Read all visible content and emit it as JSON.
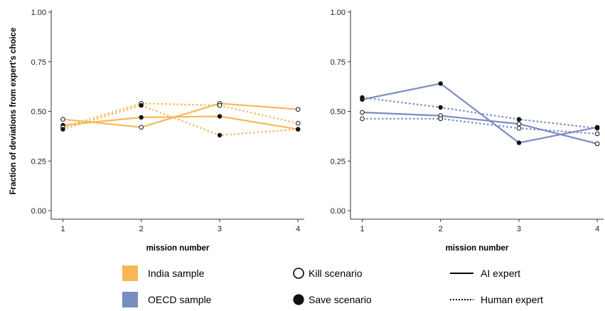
{
  "colors": {
    "india": "#f7b85a",
    "oecd": "#7b8cc4",
    "axis": "#333333"
  },
  "chart_data": [
    {
      "type": "line",
      "ylabel": "Fraction of deviations from expert's choice",
      "xlabel": "mission number",
      "x": [
        1,
        2,
        3,
        4
      ],
      "xticks": [
        "1",
        "2",
        "3",
        "4"
      ],
      "yticks": [
        "0.00",
        "0.25",
        "0.50",
        "0.75",
        "1.00"
      ],
      "ylim": [
        0,
        1
      ],
      "xlim": [
        0.85,
        4.08
      ],
      "grid": false,
      "series": [
        {
          "sample": "India",
          "scenario": "kill",
          "expert": "AI",
          "values": [
            0.46,
            0.42,
            0.54,
            0.51
          ]
        },
        {
          "sample": "India",
          "scenario": "save",
          "expert": "AI",
          "values": [
            0.43,
            0.47,
            0.475,
            0.41
          ]
        },
        {
          "sample": "India",
          "scenario": "kill",
          "expert": "Human",
          "values": [
            0.42,
            0.54,
            0.53,
            0.44
          ]
        },
        {
          "sample": "India",
          "scenario": "save",
          "expert": "Human",
          "values": [
            0.41,
            0.53,
            0.38,
            0.41
          ]
        }
      ]
    },
    {
      "type": "line",
      "ylabel": "",
      "xlabel": "mission number",
      "x": [
        1,
        2,
        3,
        4
      ],
      "xticks": [
        "1",
        "2",
        "3",
        "4"
      ],
      "yticks": [
        "0.00",
        "0.25",
        "0.50",
        "0.75",
        "1.00"
      ],
      "ylim": [
        0,
        1
      ],
      "xlim": [
        0.85,
        4.08
      ],
      "grid": false,
      "series": [
        {
          "sample": "OECD",
          "scenario": "kill",
          "expert": "AI",
          "values": [
            0.495,
            0.478,
            0.437,
            0.337
          ]
        },
        {
          "sample": "OECD",
          "scenario": "save",
          "expert": "AI",
          "values": [
            0.56,
            0.64,
            0.342,
            0.42
          ]
        },
        {
          "sample": "OECD",
          "scenario": "kill",
          "expert": "Human",
          "values": [
            0.463,
            0.463,
            0.415,
            0.387
          ]
        },
        {
          "sample": "OECD",
          "scenario": "save",
          "expert": "Human",
          "values": [
            0.57,
            0.52,
            0.46,
            0.415
          ]
        }
      ]
    }
  ],
  "legend": {
    "india": "India sample",
    "oecd": "OECD sample",
    "kill": "Kill scenario",
    "save": "Save scenario",
    "ai": "AI expert",
    "human": "Human expert"
  }
}
